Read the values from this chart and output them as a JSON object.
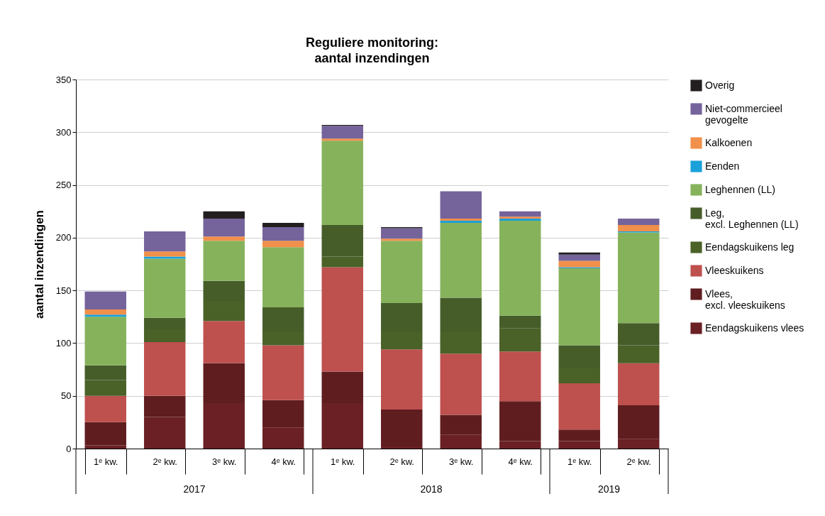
{
  "chart_data": {
    "type": "bar",
    "stacked": true,
    "title": "Reguliere monitoring:\naantal inzendingen",
    "ylabel": "aantal inzendingen",
    "categories": [
      "1ᵉ kw.",
      "2ᵉ kw.",
      "3ᵉ kw.",
      "4ᵉ kw.",
      "1ᵉ kw.",
      "2ᵉ kw.",
      "3ᵉ kw.",
      "4ᵉ kw.",
      "1ᵉ kw.",
      "2ᵉ kw."
    ],
    "annotations": [
      "2017",
      "2018",
      "2019"
    ],
    "ylim": [
      0,
      350
    ],
    "yticks": [
      0,
      50,
      100,
      150,
      200,
      250,
      300,
      350
    ],
    "grid": "y",
    "legend": "right",
    "series": [
      {
        "name": "Eendagskuikens vlees",
        "color": "#6a2024",
        "values": [
          3,
          30,
          43,
          20,
          43,
          2,
          13,
          7,
          7,
          9
        ]
      },
      {
        "name": "Vlees, excl. vleeskuikens",
        "color": "#5f1d1f",
        "values": [
          22,
          20,
          38,
          26,
          30,
          35,
          19,
          38,
          11,
          32
        ]
      },
      {
        "name": "Vleeskuikens",
        "color": "#be504e",
        "values": [
          25,
          51,
          40,
          52,
          99,
          57,
          58,
          47,
          44,
          40
        ]
      },
      {
        "name": "Eendagskuikens leg",
        "color": "#4a6128",
        "values": [
          15,
          12,
          19,
          13,
          10,
          17,
          21,
          22,
          14,
          17
        ]
      },
      {
        "name": "Leg, excl. Leghennen (LL)",
        "color": "#465d2a",
        "values": [
          14,
          11,
          19,
          23,
          30,
          27,
          32,
          12,
          22,
          21
        ]
      },
      {
        "name": "Leghennen (LL)",
        "color": "#86b25c",
        "values": [
          46,
          56,
          38,
          57,
          80,
          59,
          71,
          90,
          73,
          86
        ]
      },
      {
        "name": "Eenden",
        "color": "#1ba1d9",
        "values": [
          2,
          2,
          0,
          0,
          0,
          0,
          2,
          2,
          1,
          1
        ]
      },
      {
        "name": "Kalkoenen",
        "color": "#f0904a",
        "values": [
          5,
          5,
          4,
          6,
          2,
          2,
          2,
          2,
          6,
          6
        ]
      },
      {
        "name": "Niet-commercieel gevogelte",
        "color": "#75639b",
        "values": [
          17,
          19,
          17,
          13,
          12,
          10,
          26,
          5,
          6,
          6
        ]
      },
      {
        "name": "Overig",
        "color": "#231f20",
        "values": [
          0,
          0,
          7,
          4,
          1,
          1,
          0,
          0,
          2,
          0
        ]
      }
    ]
  }
}
